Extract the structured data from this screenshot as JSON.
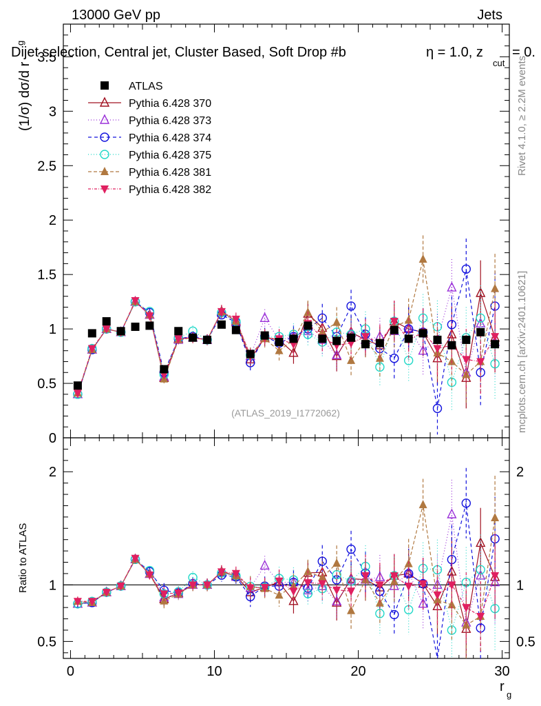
{
  "header": {
    "left": "13000 GeV pp",
    "right": "Jets",
    "selection": "Dijet selection, Central jet, Cluster Based, Soft Drop #b",
    "eta_text": "η = 1.0, z",
    "zcut_sub": "cut",
    "zcut_tail": " = 0.",
    "side_rivet": "Rivet 4.1.0, ≥ 2.2M events",
    "side_mcplots": "mcplots.cern.ch [arXiv:2401.10621]",
    "analysis_id": "(ATLAS_2019_I1772062)"
  },
  "axes": {
    "top_ylabel": "(1/σ) dσ/d r",
    "top_ylabel_sub": "g",
    "bottom_ylabel": "Ratio to ATLAS",
    "xlabel": "r",
    "xlabel_sub": "g",
    "top_ylim": [
      0,
      3.8
    ],
    "top_yticks": [
      "0",
      "0.5",
      "1",
      "1.5",
      "2",
      "2.5",
      "3",
      "3.5"
    ],
    "ratio_ylim": [
      0.35,
      2.3
    ],
    "ratio_yticks": [
      "0.5",
      "1",
      "2"
    ],
    "xlim": [
      -0.5,
      30.5
    ],
    "xticks": [
      "0",
      "10",
      "20",
      "30"
    ]
  },
  "colors": {
    "ATLAS": "#000000",
    "p370": "#a01020",
    "p373": "#9a30d8",
    "p374": "#1010dd",
    "p375": "#20d8c8",
    "p381": "#b07840",
    "p382": "#e02060"
  },
  "chart_data": {
    "type": "scatter",
    "title": "Dijet selection, Central jet, Cluster Based, Soft Drop #b η = 1.0, z_cut = 0.",
    "xlabel": "r_g",
    "ylabel": "(1/σ) dσ/d r_g",
    "x": [
      0.5,
      1.5,
      2.5,
      3.5,
      4.5,
      5.5,
      6.5,
      7.5,
      8.5,
      9.5,
      10.5,
      11.5,
      12.5,
      13.5,
      14.5,
      15.5,
      16.5,
      17.5,
      18.5,
      19.5,
      20.5,
      21.5,
      22.5,
      23.5,
      24.5,
      25.5,
      26.5,
      27.5,
      28.5,
      29.5
    ],
    "legend": [
      "ATLAS",
      "Pythia 6.428 370",
      "Pythia 6.428 373",
      "Pythia 6.428 374",
      "Pythia 6.428 375",
      "Pythia 6.428 381",
      "Pythia 6.428 382"
    ],
    "series": [
      {
        "name": "ATLAS",
        "color_key": "ATLAS",
        "marker": "square",
        "values": [
          0.48,
          0.96,
          1.07,
          0.98,
          1.02,
          1.03,
          0.63,
          0.98,
          0.92,
          0.9,
          1.04,
          0.99,
          0.77,
          0.94,
          0.88,
          0.91,
          1.03,
          0.91,
          0.89,
          0.92,
          0.86,
          0.87,
          0.99,
          0.91,
          0.96,
          0.9,
          0.85,
          0.9,
          0.97,
          0.86
        ],
        "errors": [
          0.02,
          0.02,
          0.02,
          0.02,
          0.02,
          0.02,
          0.02,
          0.02,
          0.02,
          0.02,
          0.02,
          0.02,
          0.02,
          0.02,
          0.02,
          0.02,
          0.02,
          0.02,
          0.02,
          0.02,
          0.02,
          0.02,
          0.02,
          0.02,
          0.02,
          0.02,
          0.02,
          0.02,
          0.02,
          0.02
        ]
      },
      {
        "name": "Pythia 6.428 370",
        "color_key": "p370",
        "marker": "triangle-up-open",
        "dash": "solid",
        "values": [
          0.4,
          0.81,
          1.0,
          0.97,
          1.25,
          1.13,
          0.55,
          0.91,
          0.92,
          0.9,
          1.16,
          1.07,
          0.72,
          0.92,
          0.9,
          0.78,
          1.14,
          1.01,
          0.75,
          0.97,
          0.9,
          0.85,
          1.07,
          1.0,
          0.97,
          0.73,
          0.95,
          0.55,
          1.33,
          0.92
        ],
        "errors": [
          0.02,
          0.03,
          0.03,
          0.03,
          0.04,
          0.04,
          0.04,
          0.05,
          0.05,
          0.05,
          0.06,
          0.06,
          0.07,
          0.08,
          0.09,
          0.1,
          0.11,
          0.13,
          0.14,
          0.15,
          0.16,
          0.17,
          0.19,
          0.2,
          0.22,
          0.24,
          0.26,
          0.28,
          0.3,
          0.32
        ]
      },
      {
        "name": "Pythia 6.428 373",
        "color_key": "p373",
        "marker": "triangle-up-open",
        "dash": "1,3",
        "values": [
          0.4,
          0.81,
          1.0,
          0.97,
          1.25,
          1.13,
          0.56,
          0.9,
          0.92,
          0.9,
          1.15,
          1.06,
          0.75,
          1.1,
          0.9,
          0.93,
          0.98,
          0.9,
          0.76,
          0.96,
          0.9,
          0.93,
          0.98,
          1.01,
          0.8,
          0.9,
          1.38,
          0.6,
          1.05,
          0.88
        ],
        "errors": [
          0.02,
          0.03,
          0.03,
          0.03,
          0.04,
          0.04,
          0.04,
          0.05,
          0.05,
          0.05,
          0.06,
          0.06,
          0.07,
          0.08,
          0.09,
          0.1,
          0.11,
          0.13,
          0.14,
          0.15,
          0.16,
          0.17,
          0.19,
          0.2,
          0.22,
          0.24,
          0.26,
          0.28,
          0.3,
          0.32
        ]
      },
      {
        "name": "Pythia 6.428 374",
        "color_key": "p374",
        "marker": "circle-open",
        "dash": "5,4",
        "values": [
          0.4,
          0.81,
          1.0,
          0.97,
          1.25,
          1.15,
          0.6,
          0.91,
          0.93,
          0.9,
          1.13,
          1.06,
          0.69,
          0.93,
          0.87,
          0.93,
          1.0,
          1.1,
          0.93,
          1.21,
          0.95,
          0.82,
          0.73,
          1.0,
          0.97,
          0.27,
          1.04,
          1.55,
          0.6,
          1.21
        ],
        "errors": [
          0.02,
          0.03,
          0.03,
          0.03,
          0.04,
          0.04,
          0.04,
          0.05,
          0.05,
          0.05,
          0.06,
          0.06,
          0.07,
          0.08,
          0.09,
          0.1,
          0.11,
          0.13,
          0.14,
          0.15,
          0.16,
          0.17,
          0.19,
          0.2,
          0.22,
          0.24,
          0.26,
          0.28,
          0.3,
          0.32
        ]
      },
      {
        "name": "Pythia 6.428 375",
        "color_key": "p375",
        "marker": "circle-open",
        "dash": "1,3",
        "values": [
          0.4,
          0.82,
          1.0,
          0.97,
          1.25,
          1.16,
          0.58,
          0.92,
          0.98,
          0.9,
          1.15,
          1.07,
          0.76,
          0.92,
          0.93,
          0.95,
          0.95,
          0.88,
          0.97,
          0.95,
          1.0,
          0.65,
          1.07,
          0.71,
          1.1,
          1.02,
          0.51,
          0.92,
          1.1,
          0.68
        ],
        "errors": [
          0.02,
          0.03,
          0.03,
          0.03,
          0.04,
          0.04,
          0.04,
          0.05,
          0.05,
          0.05,
          0.06,
          0.06,
          0.07,
          0.08,
          0.09,
          0.1,
          0.11,
          0.13,
          0.14,
          0.15,
          0.16,
          0.17,
          0.19,
          0.2,
          0.22,
          0.24,
          0.26,
          0.28,
          0.3,
          0.32
        ]
      },
      {
        "name": "Pythia 6.428 381",
        "color_key": "p381",
        "marker": "triangle-up-filled",
        "dash": "5,3",
        "values": [
          0.41,
          0.81,
          1.0,
          0.97,
          1.25,
          1.13,
          0.54,
          0.9,
          0.92,
          0.9,
          1.16,
          1.07,
          0.76,
          0.91,
          0.8,
          0.9,
          1.15,
          0.97,
          1.06,
          0.71,
          0.9,
          0.73,
          1.02,
          1.08,
          1.64,
          0.78,
          0.7,
          0.58,
          0.7,
          1.37
        ],
        "errors": [
          0.02,
          0.03,
          0.03,
          0.03,
          0.04,
          0.04,
          0.04,
          0.05,
          0.05,
          0.05,
          0.06,
          0.06,
          0.07,
          0.08,
          0.09,
          0.1,
          0.11,
          0.13,
          0.14,
          0.15,
          0.16,
          0.17,
          0.19,
          0.2,
          0.22,
          0.24,
          0.26,
          0.28,
          0.3,
          0.32
        ]
      },
      {
        "name": "Pythia 6.428 382",
        "color_key": "p382",
        "marker": "triangle-down-filled",
        "dash": "4,2,1,2",
        "values": [
          0.41,
          0.82,
          1.0,
          0.97,
          1.26,
          1.12,
          0.58,
          0.91,
          0.92,
          0.9,
          1.16,
          1.09,
          0.75,
          0.92,
          0.91,
          0.86,
          1.05,
          0.92,
          0.85,
          0.87,
          0.93,
          0.87,
          1.07,
          0.9,
          0.97,
          0.82,
          0.85,
          0.72,
          0.7,
          0.93
        ],
        "errors": [
          0.02,
          0.03,
          0.03,
          0.03,
          0.04,
          0.04,
          0.04,
          0.05,
          0.05,
          0.05,
          0.06,
          0.06,
          0.07,
          0.08,
          0.09,
          0.1,
          0.11,
          0.13,
          0.14,
          0.15,
          0.16,
          0.17,
          0.19,
          0.2,
          0.22,
          0.24,
          0.26,
          0.28,
          0.3,
          0.32
        ]
      }
    ]
  }
}
